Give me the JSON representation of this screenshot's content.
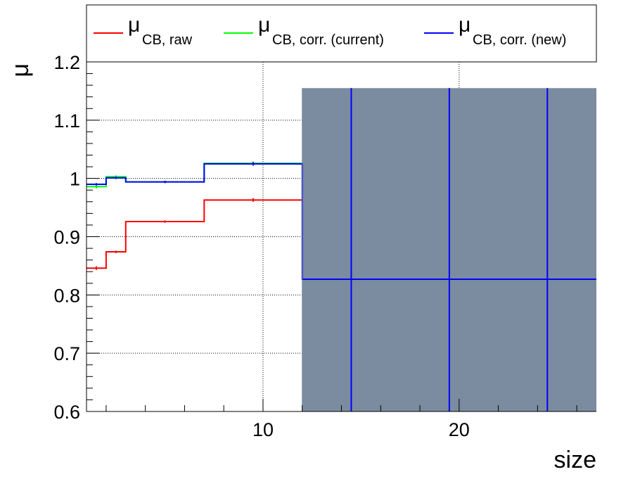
{
  "chart_data": {
    "type": "line",
    "xlabel": "size",
    "ylabel": "μ",
    "xlim": [
      1,
      27
    ],
    "ylim": [
      0.6,
      1.2
    ],
    "x_ticks": [
      10,
      20
    ],
    "y_ticks": [
      0.6,
      0.7,
      0.8,
      0.9,
      1.0,
      1.1,
      1.2
    ],
    "y_tick_labels": [
      "0.6",
      "0.7",
      "0.8",
      "0.9",
      "1",
      "1.1",
      "1.2"
    ],
    "x_tick_labels": [
      "10",
      "20"
    ],
    "grid": true,
    "legend_placement": "top",
    "series": [
      {
        "name_symbol": "μ",
        "name_subscript": "CB, raw",
        "color": "#ff0000",
        "bin_edges": [
          1,
          2,
          3,
          7,
          12,
          27
        ],
        "values": [
          0.846,
          0.874,
          0.926,
          0.963,
          0.963
        ],
        "errors": [
          0.003,
          0.002,
          0.002,
          0.003,
          0.0
        ],
        "drawn_bins": 4
      },
      {
        "name_symbol": "μ",
        "name_subscript": "CB, corr. (current)",
        "color": "#00ff00",
        "bin_edges": [
          1,
          2,
          3,
          7,
          12,
          27
        ],
        "values": [
          0.986,
          1.003,
          0.994,
          1.026,
          1.026
        ],
        "errors": [
          0.003,
          0.002,
          0.002,
          0.003,
          0.0
        ],
        "drawn_bins": 4
      },
      {
        "name_symbol": "μ",
        "name_subscript": "CB, corr. (new)",
        "color": "#0000ff",
        "bin_edges": [
          1,
          2,
          3,
          7,
          12,
          27
        ],
        "values": [
          0.99,
          1.001,
          0.994,
          1.025,
          0.827
        ],
        "errors": [
          0.002,
          0.002,
          0.002,
          0.003,
          0.33
        ],
        "drawn_bins": 5,
        "error_band_color": "#7b8ba0",
        "error_band_bins": [
          4
        ],
        "error_band_range": [
          0.6,
          1.155
        ],
        "extra_vertical_lines_x": [
          14.5,
          19.5,
          24.5
        ]
      }
    ]
  }
}
